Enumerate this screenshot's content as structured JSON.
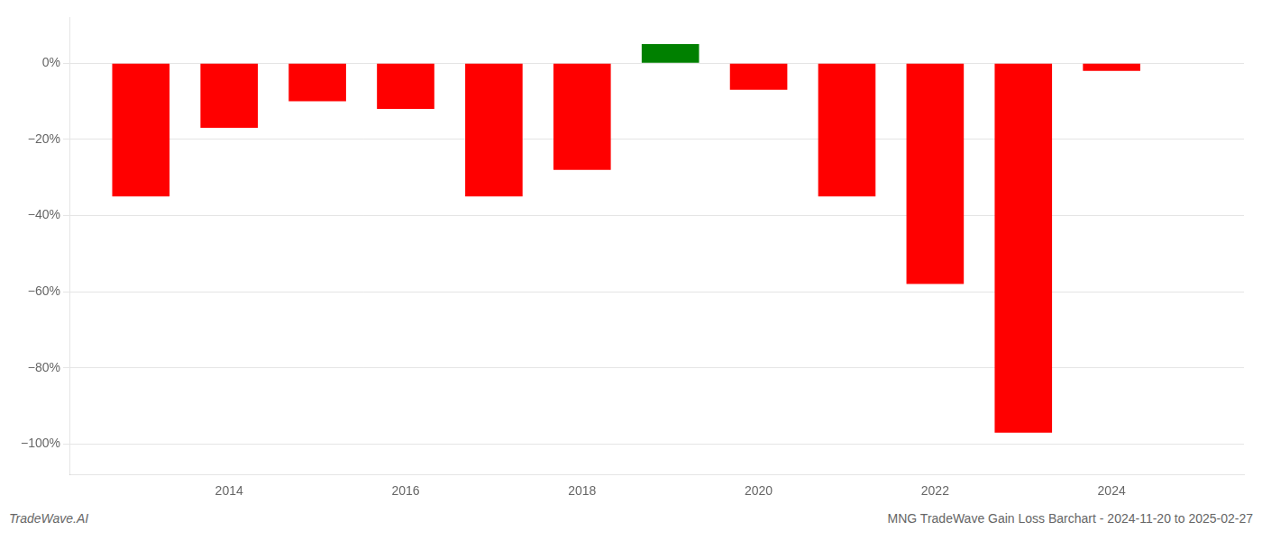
{
  "chart_data": {
    "type": "bar",
    "title": "MNG TradeWave Gain Loss Barchart - 2024-11-20 to 2025-02-27",
    "annotations": [
      "TradeWave.AI"
    ],
    "x": [
      2013,
      2014,
      2015,
      2016,
      2017,
      2018,
      2019,
      2020,
      2021,
      2022,
      2023,
      2024
    ],
    "values": [
      -35,
      -17,
      -10,
      -12,
      -35,
      -28,
      5,
      -7,
      -35,
      -58,
      -97,
      -2
    ],
    "colors": [
      "#ff0000",
      "#ff0000",
      "#ff0000",
      "#ff0000",
      "#ff0000",
      "#ff0000",
      "#008000",
      "#ff0000",
      "#ff0000",
      "#ff0000",
      "#ff0000",
      "#ff0000"
    ],
    "xlim": [
      2012.2,
      2025.5
    ],
    "xticks": [
      2014,
      2016,
      2018,
      2020,
      2022,
      2024
    ],
    "ylim": [
      -108,
      12
    ],
    "yticks": [
      {
        "value": 0,
        "label": "0%"
      },
      {
        "value": -20,
        "label": "−20%"
      },
      {
        "value": -40,
        "label": "−40%"
      },
      {
        "value": -60,
        "label": "−60%"
      },
      {
        "value": -80,
        "label": "−80%"
      },
      {
        "value": -100,
        "label": "−100%"
      }
    ],
    "grid": "y"
  }
}
